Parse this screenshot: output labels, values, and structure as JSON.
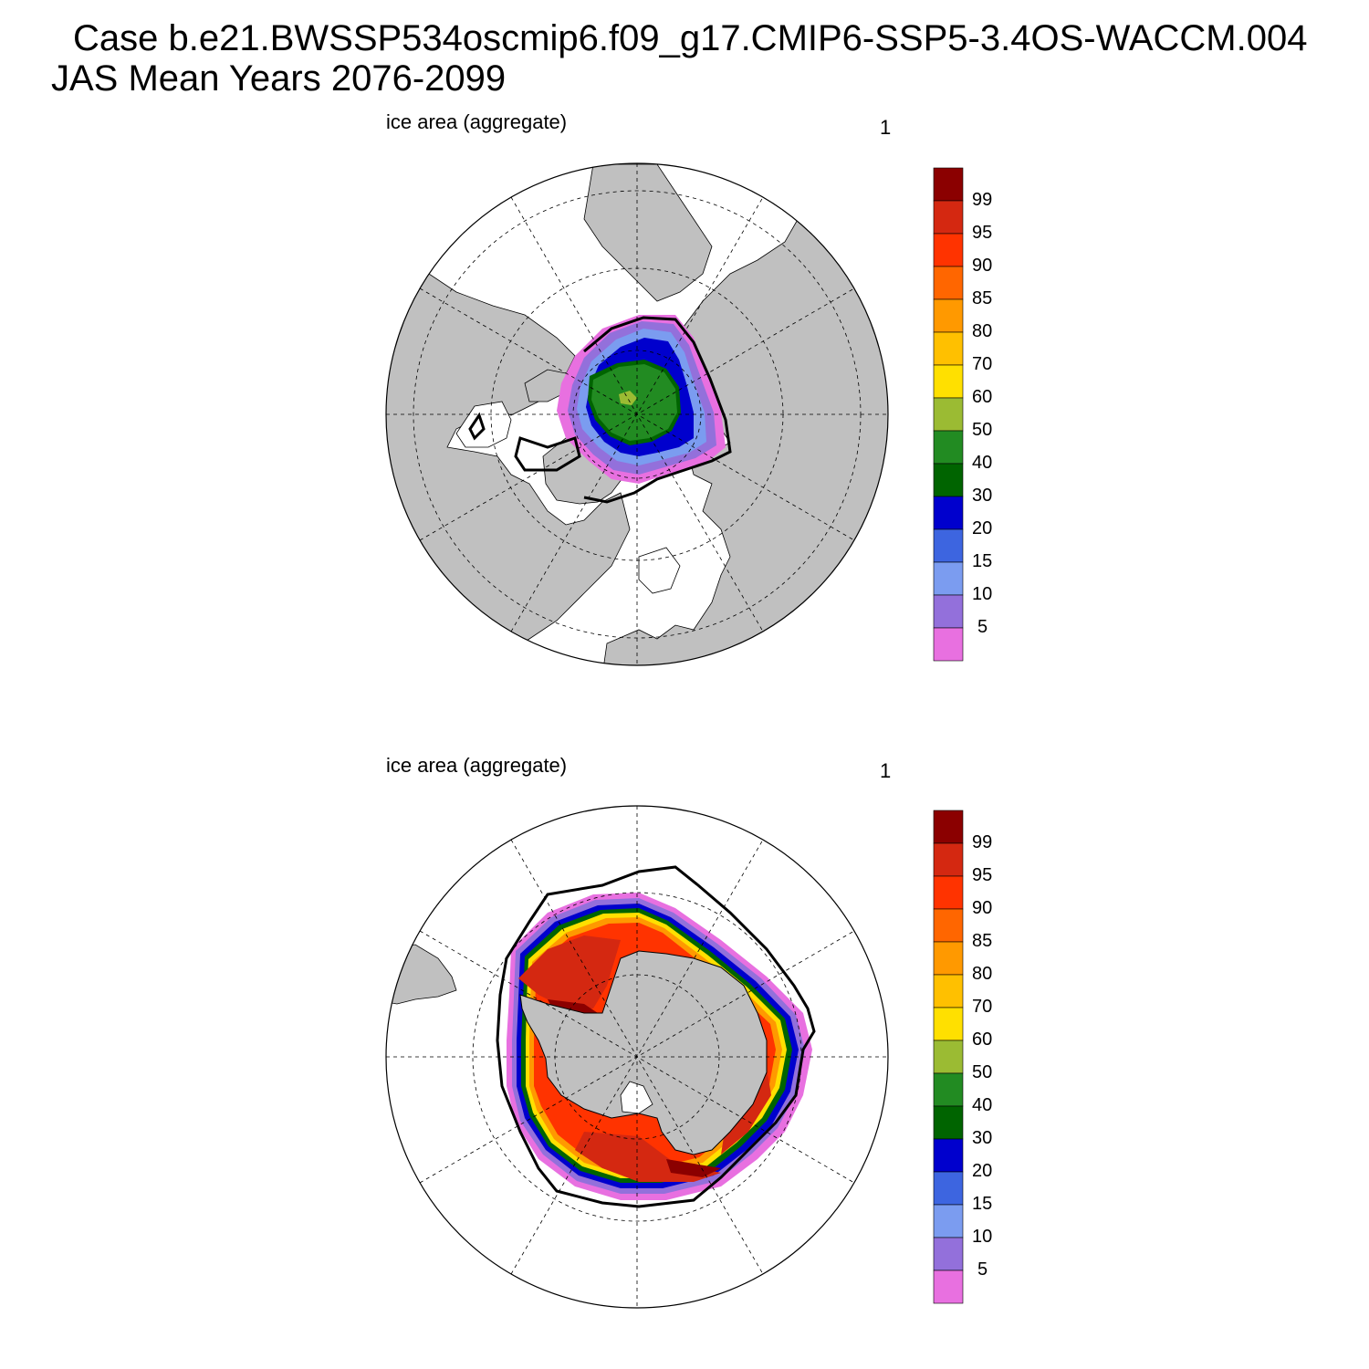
{
  "header": {
    "case_line": "Case b.e21.BWSSP534oscmip6.f09_g17.CMIP6-SSP5-3.4OS-WACCM.004",
    "period_line": "JAS Mean   Years 2076-2099"
  },
  "panels": [
    {
      "hemisphere": "north",
      "left_label": "ice area  (aggregate)",
      "right_label": "1"
    },
    {
      "hemisphere": "south",
      "left_label": "ice area  (aggregate)",
      "right_label": "1"
    }
  ],
  "legend": {
    "labels": [
      "99",
      "95",
      "90",
      "85",
      "80",
      "70",
      "60",
      "50",
      "40",
      "30",
      "20",
      "15",
      "10",
      "5"
    ],
    "colors": [
      "#8b0000",
      "#d42811",
      "#ff3300",
      "#ff6600",
      "#ff9900",
      "#ffc000",
      "#ffe000",
      "#9bbb33",
      "#228b22",
      "#006400",
      "#0000cd",
      "#3d65e0",
      "#7b9cf0",
      "#9370db",
      "#e870e0"
    ]
  },
  "colors": {
    "land": "#c0c0c0",
    "ocean": "#ffffff"
  }
}
